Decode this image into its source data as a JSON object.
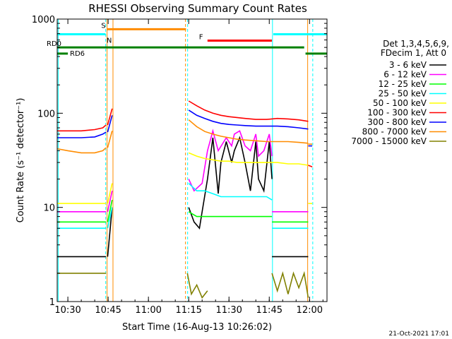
{
  "chart_data": {
    "type": "line",
    "title": "RHESSI Observing Summary Count Rates",
    "xlabel": "Start Time (16-Aug-13 10:26:02)",
    "ylabel": "Count Rate (s⁻¹ detector⁻¹)",
    "xlim_minutes": [
      26.03,
      126.5
    ],
    "ylim": [
      1,
      1000
    ],
    "yscale": "log",
    "x_ticks": [
      {
        "minute": 30,
        "label": "10:30"
      },
      {
        "minute": 45,
        "label": "10:45"
      },
      {
        "minute": 60,
        "label": "11:00"
      },
      {
        "minute": 75,
        "label": "11:15"
      },
      {
        "minute": 90,
        "label": "11:30"
      },
      {
        "minute": 105,
        "label": "11:45"
      },
      {
        "minute": 120,
        "label": "12:00"
      }
    ],
    "y_ticks": [
      {
        "value": 1,
        "label": "1"
      },
      {
        "value": 10,
        "label": "10"
      },
      {
        "value": 100,
        "label": "100"
      },
      {
        "value": 1000,
        "label": "1000"
      }
    ],
    "legend": {
      "placement": "right",
      "header": [
        "Det 1,3,4,5,6,9,",
        "FDecim 1, Att 0"
      ]
    },
    "series": [
      {
        "name": "3 - 6 keV",
        "color": "#000000",
        "segments": [
          {
            "x": [
              26,
              30,
              35,
              40,
              43,
              44.2
            ],
            "y": [
              3,
              3,
              3,
              3,
              3,
              3
            ]
          },
          {
            "x": [
              44.8,
              46.5
            ],
            "y": [
              3,
              10
            ]
          },
          {
            "x": [
              75,
              77,
              79,
              80,
              82,
              84,
              86,
              87,
              89,
              91,
              92,
              94,
              96,
              98,
              100,
              101,
              103,
              105,
              106
            ],
            "y": [
              10,
              7,
              6,
              9,
              20,
              55,
              14,
              30,
              50,
              30,
              40,
              55,
              30,
              15,
              50,
              20,
              15,
              50,
              20
            ]
          },
          {
            "x": [
              106,
              110,
              115,
              119.5
            ],
            "y": [
              3,
              3,
              3,
              3
            ]
          }
        ]
      },
      {
        "name": "6 - 12 keV",
        "color": "#ff00ff",
        "segments": [
          {
            "x": [
              26,
              30,
              35,
              40,
              43,
              44.2
            ],
            "y": [
              9,
              9,
              9,
              9,
              9,
              9
            ]
          },
          {
            "x": [
              44.8,
              46.5
            ],
            "y": [
              9,
              15
            ]
          },
          {
            "x": [
              75,
              77,
              80,
              82,
              84,
              86,
              89,
              91,
              92,
              94,
              96,
              98,
              100,
              101,
              103,
              105,
              106
            ],
            "y": [
              20,
              15,
              18,
              40,
              65,
              40,
              55,
              45,
              60,
              65,
              45,
              40,
              60,
              35,
              40,
              60,
              35
            ]
          },
          {
            "x": [
              106,
              110,
              115,
              119.5
            ],
            "y": [
              9,
              9,
              9,
              9
            ]
          }
        ]
      },
      {
        "name": "12 - 25 keV",
        "color": "#00ff00",
        "segments": [
          {
            "x": [
              26,
              30,
              35,
              40,
              43,
              44.2
            ],
            "y": [
              7,
              7,
              7,
              7,
              7,
              7
            ]
          },
          {
            "x": [
              44.8,
              46.5
            ],
            "y": [
              7,
              12
            ]
          },
          {
            "x": [
              75,
              78,
              82,
              86,
              90,
              95,
              100,
              106
            ],
            "y": [
              9,
              8,
              8,
              8,
              8,
              8,
              8,
              8
            ]
          },
          {
            "x": [
              106,
              110,
              115,
              119.5
            ],
            "y": [
              7,
              7,
              7,
              7
            ]
          }
        ]
      },
      {
        "name": "25 - 50 keV",
        "color": "#00ffff",
        "segments": [
          {
            "x": [
              26,
              30,
              35,
              40,
              43,
              44.2
            ],
            "y": [
              6,
              6,
              6,
              6,
              6,
              6
            ]
          },
          {
            "x": [
              44.8,
              46.5
            ],
            "y": [
              6,
              10
            ]
          },
          {
            "x": [
              75,
              78,
              81,
              84,
              87,
              90,
              93,
              96,
              100,
              104,
              106
            ],
            "y": [
              18,
              15,
              15,
              14,
              13,
              13,
              13,
              13,
              13,
              13,
              12
            ]
          },
          {
            "x": [
              106,
              110,
              115,
              119.5
            ],
            "y": [
              6,
              6,
              6,
              6
            ]
          }
        ]
      },
      {
        "name": "50 - 100 keV",
        "color": "#ffff00",
        "segments": [
          {
            "x": [
              26,
              30,
              35,
              40,
              43,
              44.2
            ],
            "y": [
              11,
              11,
              11,
              11,
              11,
              11
            ]
          },
          {
            "x": [
              44.8,
              46.5
            ],
            "y": [
              11,
              18
            ]
          },
          {
            "x": [
              75,
              78,
              81,
              84,
              87,
              90,
              93,
              96,
              100,
              104,
              108,
              112,
              116,
              119.5
            ],
            "y": [
              38,
              35,
              33,
              32,
              31,
              31,
              30,
              30,
              30,
              30,
              30,
              29,
              29,
              28
            ]
          },
          {
            "x": [
              119.5,
              121
            ],
            "y": [
              11,
              11
            ]
          }
        ]
      },
      {
        "name": "100 - 300 keV",
        "color": "#ff0000",
        "segments": [
          {
            "x": [
              26,
              30,
              35,
              40,
              43,
              44.2
            ],
            "y": [
              65,
              65,
              65,
              67,
              70,
              75
            ]
          },
          {
            "x": [
              44.8,
              46.5
            ],
            "y": [
              75,
              112
            ]
          },
          {
            "x": [
              75,
              78,
              81,
              84,
              87,
              90,
              93,
              96,
              100,
              104,
              108,
              112,
              116,
              119.5
            ],
            "y": [
              135,
              120,
              108,
              100,
              95,
              92,
              90,
              88,
              86,
              86,
              88,
              87,
              85,
              82
            ]
          },
          {
            "x": [
              119.5,
              121
            ],
            "y": [
              28,
              27
            ]
          }
        ]
      },
      {
        "name": "300 - 800 keV",
        "color": "#0000ff",
        "segments": [
          {
            "x": [
              26,
              30,
              35,
              40,
              43,
              44.2
            ],
            "y": [
              55,
              55,
              55,
              56,
              60,
              63
            ]
          },
          {
            "x": [
              44.8,
              46.5
            ],
            "y": [
              63,
              95
            ]
          },
          {
            "x": [
              75,
              78,
              81,
              84,
              87,
              90,
              93,
              96,
              100,
              104,
              108,
              112,
              116,
              119.5
            ],
            "y": [
              108,
              95,
              88,
              82,
              78,
              76,
              75,
              74,
              73,
              73,
              73,
              72,
              70,
              68
            ]
          },
          {
            "x": [
              119.5,
              121
            ],
            "y": [
              45,
              45
            ]
          }
        ]
      },
      {
        "name": "800 - 7000 keV",
        "color": "#ff8c00",
        "segments": [
          {
            "x": [
              26,
              30,
              35,
              40,
              43,
              44.2
            ],
            "y": [
              42,
              40,
              38,
              38,
              40,
              43
            ]
          },
          {
            "x": [
              44.8,
              46.5
            ],
            "y": [
              43,
              65
            ]
          },
          {
            "x": [
              75,
              78,
              81,
              84,
              87,
              90,
              93,
              96,
              100,
              104,
              108,
              112,
              116,
              119.5
            ],
            "y": [
              85,
              72,
              64,
              60,
              57,
              55,
              53,
              52,
              51,
              50,
              50,
              50,
              49,
              48
            ]
          },
          {
            "x": [
              119.5,
              121
            ],
            "y": [
              47,
              47
            ]
          }
        ]
      },
      {
        "name": "7000 - 15000 keV",
        "color": "#808000",
        "segments": [
          {
            "x": [
              26,
              30,
              35,
              40,
              43,
              44.2
            ],
            "y": [
              2,
              2,
              2,
              2,
              2,
              2
            ]
          },
          {
            "x": [
              74.5,
              76,
              78,
              80,
              82
            ],
            "y": [
              2,
              1.2,
              1.5,
              1.1,
              1.3
            ]
          },
          {
            "x": [
              106,
              108,
              110,
              112,
              114,
              116,
              118,
              119.5
            ],
            "y": [
              2,
              1.3,
              2,
              1.2,
              2,
              1.4,
              2,
              1.1
            ]
          }
        ]
      }
    ],
    "flag_bars": [
      {
        "label": "S",
        "color": "#ff8c00",
        "x": [
          44.5,
          74
        ],
        "y": 780
      },
      {
        "label": "N",
        "color": "#00ffff",
        "x": [
          26,
          44
        ],
        "y": 690
      },
      {
        "label": "N",
        "color": "#00ffff",
        "x": [
          106.5,
          126.5
        ],
        "y": 690
      },
      {
        "label": "F",
        "color": "#ff0000",
        "x": [
          82,
          106
        ],
        "y": 590
      },
      {
        "label": "RD0",
        "color": "#008000",
        "x": [
          26,
          118
        ],
        "y": 500
      },
      {
        "label": "RD6",
        "color": "#008000",
        "x": [
          26,
          30
        ],
        "y": 430
      },
      {
        "label": "RD6",
        "color": "#008000",
        "x": [
          118.5,
          126.5
        ],
        "y": 430
      }
    ],
    "vertical_markers": [
      {
        "minute": 26.4,
        "color": "#00ffff",
        "style": "solid"
      },
      {
        "minute": 44.1,
        "color": "#00ffff",
        "style": "dashed"
      },
      {
        "minute": 44.6,
        "color": "#ff8c00",
        "style": "solid"
      },
      {
        "minute": 46.8,
        "color": "#ff8c00",
        "style": "solid"
      },
      {
        "minute": 73.8,
        "color": "#ff8c00",
        "style": "dashed"
      },
      {
        "minute": 74.6,
        "color": "#00ffff",
        "style": "dashed"
      },
      {
        "minute": 106.2,
        "color": "#00ffff",
        "style": "solid"
      },
      {
        "minute": 119.3,
        "color": "#ff8c00",
        "style": "solid"
      },
      {
        "minute": 121.2,
        "color": "#00ffff",
        "style": "dashed"
      }
    ],
    "footer": "21-Oct-2021 17:01"
  }
}
